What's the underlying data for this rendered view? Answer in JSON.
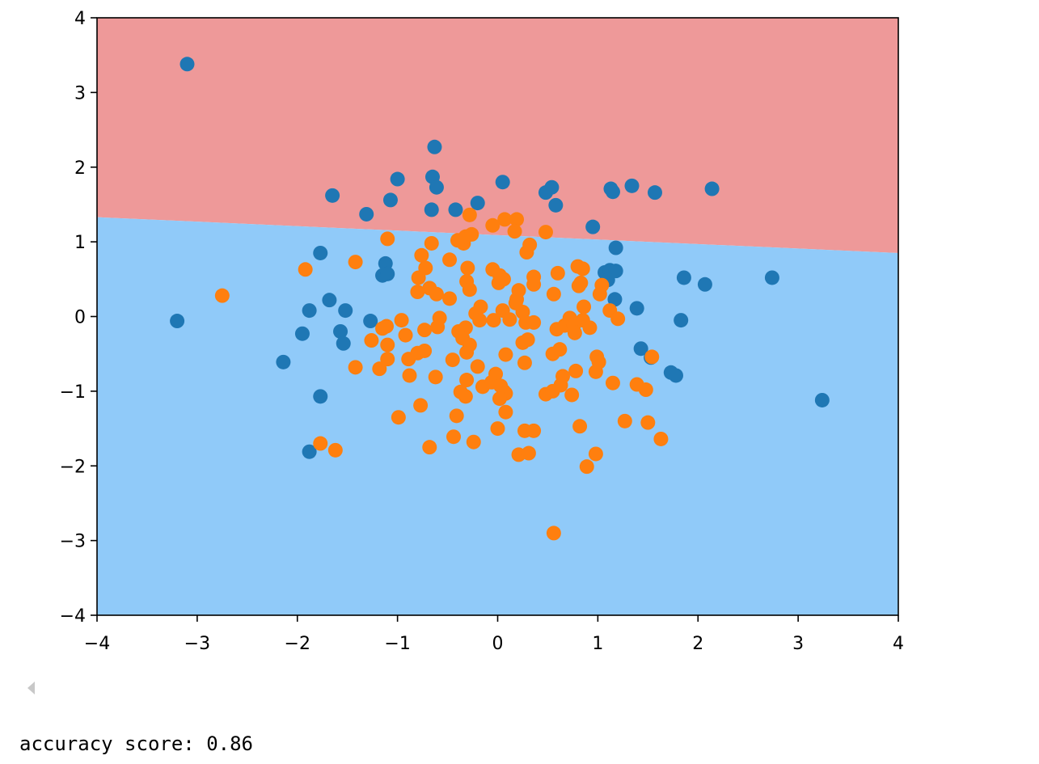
{
  "chart_data": {
    "type": "scatter",
    "title": "",
    "xlabel": "",
    "ylabel": "",
    "xlim": [
      -4,
      4
    ],
    "ylim": [
      -4,
      4
    ],
    "x_ticks": [
      -4,
      -3,
      -2,
      -1,
      0,
      1,
      2,
      3,
      4
    ],
    "y_ticks": [
      -4,
      -3,
      -2,
      -1,
      0,
      1,
      2,
      3,
      4
    ],
    "x_tick_labels": [
      "−4",
      "−3",
      "−2",
      "−1",
      "0",
      "1",
      "2",
      "3",
      "4"
    ],
    "y_tick_labels": [
      "−4",
      "−3",
      "−2",
      "−1",
      "0",
      "1",
      "2",
      "3",
      "4"
    ],
    "grid": false,
    "decision_regions": [
      {
        "class": "upper",
        "color": "#ee9999"
      },
      {
        "class": "lower",
        "color": "#90caf9"
      }
    ],
    "decision_boundary": {
      "x": [
        -4,
        4
      ],
      "y": [
        1.33,
        0.85
      ]
    },
    "series": [
      {
        "color": "#1f77b4",
        "points": [
          [
            -3.1,
            3.38
          ],
          [
            -0.63,
            2.27
          ],
          [
            -1.0,
            1.84
          ],
          [
            -0.65,
            1.87
          ],
          [
            -1.65,
            1.62
          ],
          [
            -1.07,
            1.56
          ],
          [
            -0.61,
            1.73
          ],
          [
            -0.66,
            1.43
          ],
          [
            -0.42,
            1.43
          ],
          [
            -1.31,
            1.37
          ],
          [
            -0.2,
            1.52
          ],
          [
            0.05,
            1.8
          ],
          [
            0.48,
            1.66
          ],
          [
            0.54,
            1.73
          ],
          [
            0.58,
            1.49
          ],
          [
            1.13,
            1.71
          ],
          [
            1.15,
            1.67
          ],
          [
            1.34,
            1.75
          ],
          [
            1.57,
            1.66
          ],
          [
            2.14,
            1.71
          ],
          [
            0.95,
            1.2
          ],
          [
            -1.77,
            0.85
          ],
          [
            -1.12,
            0.71
          ],
          [
            -1.15,
            0.55
          ],
          [
            -1.1,
            0.57
          ],
          [
            1.18,
            0.92
          ],
          [
            1.07,
            0.59
          ],
          [
            1.12,
            0.62
          ],
          [
            1.18,
            0.61
          ],
          [
            1.1,
            0.49
          ],
          [
            1.17,
            0.23
          ],
          [
            1.86,
            0.52
          ],
          [
            2.07,
            0.43
          ],
          [
            2.74,
            0.52
          ],
          [
            -1.68,
            0.22
          ],
          [
            -1.88,
            0.08
          ],
          [
            -1.52,
            0.08
          ],
          [
            -3.2,
            -0.06
          ],
          [
            -1.27,
            -0.06
          ],
          [
            -1.95,
            -0.23
          ],
          [
            -1.57,
            -0.2
          ],
          [
            -1.54,
            -0.36
          ],
          [
            1.39,
            0.11
          ],
          [
            1.83,
            -0.05
          ],
          [
            1.43,
            -0.43
          ],
          [
            1.53,
            -0.55
          ],
          [
            1.73,
            -0.75
          ],
          [
            1.78,
            -0.79
          ],
          [
            -2.14,
            -0.61
          ],
          [
            -1.77,
            -1.07
          ],
          [
            -1.88,
            -1.81
          ],
          [
            3.24,
            -1.12
          ]
        ]
      },
      {
        "color": "#ff7f0e",
        "points": [
          [
            -2.75,
            0.28
          ],
          [
            -1.92,
            0.63
          ],
          [
            -1.42,
            0.73
          ],
          [
            -1.1,
            1.04
          ],
          [
            -0.76,
            0.82
          ],
          [
            -0.72,
            0.65
          ],
          [
            -0.66,
            0.98
          ],
          [
            -0.48,
            0.76
          ],
          [
            -0.4,
            1.02
          ],
          [
            -0.34,
            0.98
          ],
          [
            -0.32,
            1.07
          ],
          [
            -0.26,
            1.1
          ],
          [
            -0.28,
            1.36
          ],
          [
            -0.05,
            1.22
          ],
          [
            0.07,
            1.3
          ],
          [
            0.19,
            1.3
          ],
          [
            0.17,
            1.14
          ],
          [
            0.29,
            0.86
          ],
          [
            0.32,
            0.96
          ],
          [
            0.48,
            1.13
          ],
          [
            -0.79,
            0.52
          ],
          [
            -0.68,
            0.38
          ],
          [
            -0.61,
            0.3
          ],
          [
            -0.8,
            0.33
          ],
          [
            -0.48,
            0.24
          ],
          [
            -0.3,
            0.65
          ],
          [
            -0.31,
            0.47
          ],
          [
            -0.28,
            0.36
          ],
          [
            -0.05,
            0.63
          ],
          [
            0.06,
            0.5
          ],
          [
            0.02,
            0.55
          ],
          [
            0.01,
            0.45
          ],
          [
            0.21,
            0.35
          ],
          [
            0.19,
            0.23
          ],
          [
            0.36,
            0.53
          ],
          [
            0.36,
            0.43
          ],
          [
            0.56,
            0.3
          ],
          [
            0.6,
            0.58
          ],
          [
            0.8,
            0.67
          ],
          [
            0.85,
            0.64
          ],
          [
            0.83,
            0.45
          ],
          [
            0.81,
            0.41
          ],
          [
            1.04,
            0.42
          ],
          [
            1.02,
            0.3
          ],
          [
            -0.96,
            -0.05
          ],
          [
            -1.11,
            -0.13
          ],
          [
            -1.15,
            -0.16
          ],
          [
            -1.26,
            -0.32
          ],
          [
            -0.92,
            -0.25
          ],
          [
            -0.73,
            -0.18
          ],
          [
            -0.6,
            -0.14
          ],
          [
            -0.58,
            -0.02
          ],
          [
            -0.39,
            -0.2
          ],
          [
            -0.32,
            -0.15
          ],
          [
            -0.35,
            -0.29
          ],
          [
            -0.17,
            0.13
          ],
          [
            -0.22,
            0.04
          ],
          [
            -0.18,
            -0.05
          ],
          [
            -0.04,
            -0.05
          ],
          [
            0.05,
            0.08
          ],
          [
            0.12,
            -0.04
          ],
          [
            0.18,
            0.18
          ],
          [
            0.25,
            0.06
          ],
          [
            0.28,
            -0.08
          ],
          [
            0.36,
            -0.08
          ],
          [
            0.59,
            -0.17
          ],
          [
            0.67,
            -0.12
          ],
          [
            0.72,
            -0.02
          ],
          [
            0.76,
            -0.12
          ],
          [
            0.77,
            -0.22
          ],
          [
            0.85,
            -0.05
          ],
          [
            0.86,
            0.13
          ],
          [
            0.92,
            -0.15
          ],
          [
            1.12,
            0.08
          ],
          [
            1.2,
            -0.03
          ],
          [
            -1.42,
            -0.68
          ],
          [
            -1.18,
            -0.7
          ],
          [
            -1.1,
            -0.57
          ],
          [
            -1.1,
            -0.38
          ],
          [
            -0.89,
            -0.57
          ],
          [
            -0.8,
            -0.49
          ],
          [
            -0.73,
            -0.46
          ],
          [
            -0.88,
            -0.79
          ],
          [
            -0.62,
            -0.81
          ],
          [
            -0.45,
            -0.58
          ],
          [
            -0.31,
            -0.48
          ],
          [
            -0.28,
            -0.38
          ],
          [
            -0.2,
            -0.67
          ],
          [
            -0.31,
            -0.85
          ],
          [
            -0.37,
            -1.01
          ],
          [
            -0.32,
            -1.07
          ],
          [
            -0.15,
            -0.94
          ],
          [
            -0.06,
            -0.88
          ],
          [
            -0.02,
            -0.77
          ],
          [
            0.03,
            -0.93
          ],
          [
            0.06,
            -1.0
          ],
          [
            0.08,
            -1.03
          ],
          [
            0.02,
            -1.1
          ],
          [
            0.08,
            -0.51
          ],
          [
            0.27,
            -0.62
          ],
          [
            0.25,
            -0.35
          ],
          [
            0.3,
            -0.31
          ],
          [
            0.55,
            -0.5
          ],
          [
            0.62,
            -0.44
          ],
          [
            0.63,
            -0.92
          ],
          [
            0.65,
            -0.8
          ],
          [
            0.48,
            -1.04
          ],
          [
            0.55,
            -1.0
          ],
          [
            0.74,
            -1.05
          ],
          [
            0.78,
            -0.73
          ],
          [
            0.99,
            -0.54
          ],
          [
            1.01,
            -0.61
          ],
          [
            0.98,
            -0.74
          ],
          [
            1.15,
            -0.89
          ],
          [
            1.39,
            -0.91
          ],
          [
            1.48,
            -0.98
          ],
          [
            1.54,
            -0.54
          ],
          [
            -0.99,
            -1.35
          ],
          [
            -0.77,
            -1.19
          ],
          [
            -0.41,
            -1.33
          ],
          [
            -0.68,
            -1.75
          ],
          [
            -0.44,
            -1.61
          ],
          [
            -0.24,
            -1.68
          ],
          [
            0.0,
            -1.5
          ],
          [
            0.08,
            -1.28
          ],
          [
            0.27,
            -1.53
          ],
          [
            0.36,
            -1.53
          ],
          [
            0.21,
            -1.85
          ],
          [
            0.31,
            -1.83
          ],
          [
            0.82,
            -1.47
          ],
          [
            0.98,
            -1.84
          ],
          [
            0.89,
            -2.01
          ],
          [
            1.27,
            -1.4
          ],
          [
            1.5,
            -1.42
          ],
          [
            1.63,
            -1.64
          ],
          [
            -1.77,
            -1.7
          ],
          [
            -1.62,
            -1.79
          ],
          [
            0.56,
            -2.9
          ]
        ]
      }
    ]
  },
  "output": {
    "text": "accuracy score: 0.86"
  },
  "icons": {
    "scroll_left": "caret-left-icon"
  }
}
